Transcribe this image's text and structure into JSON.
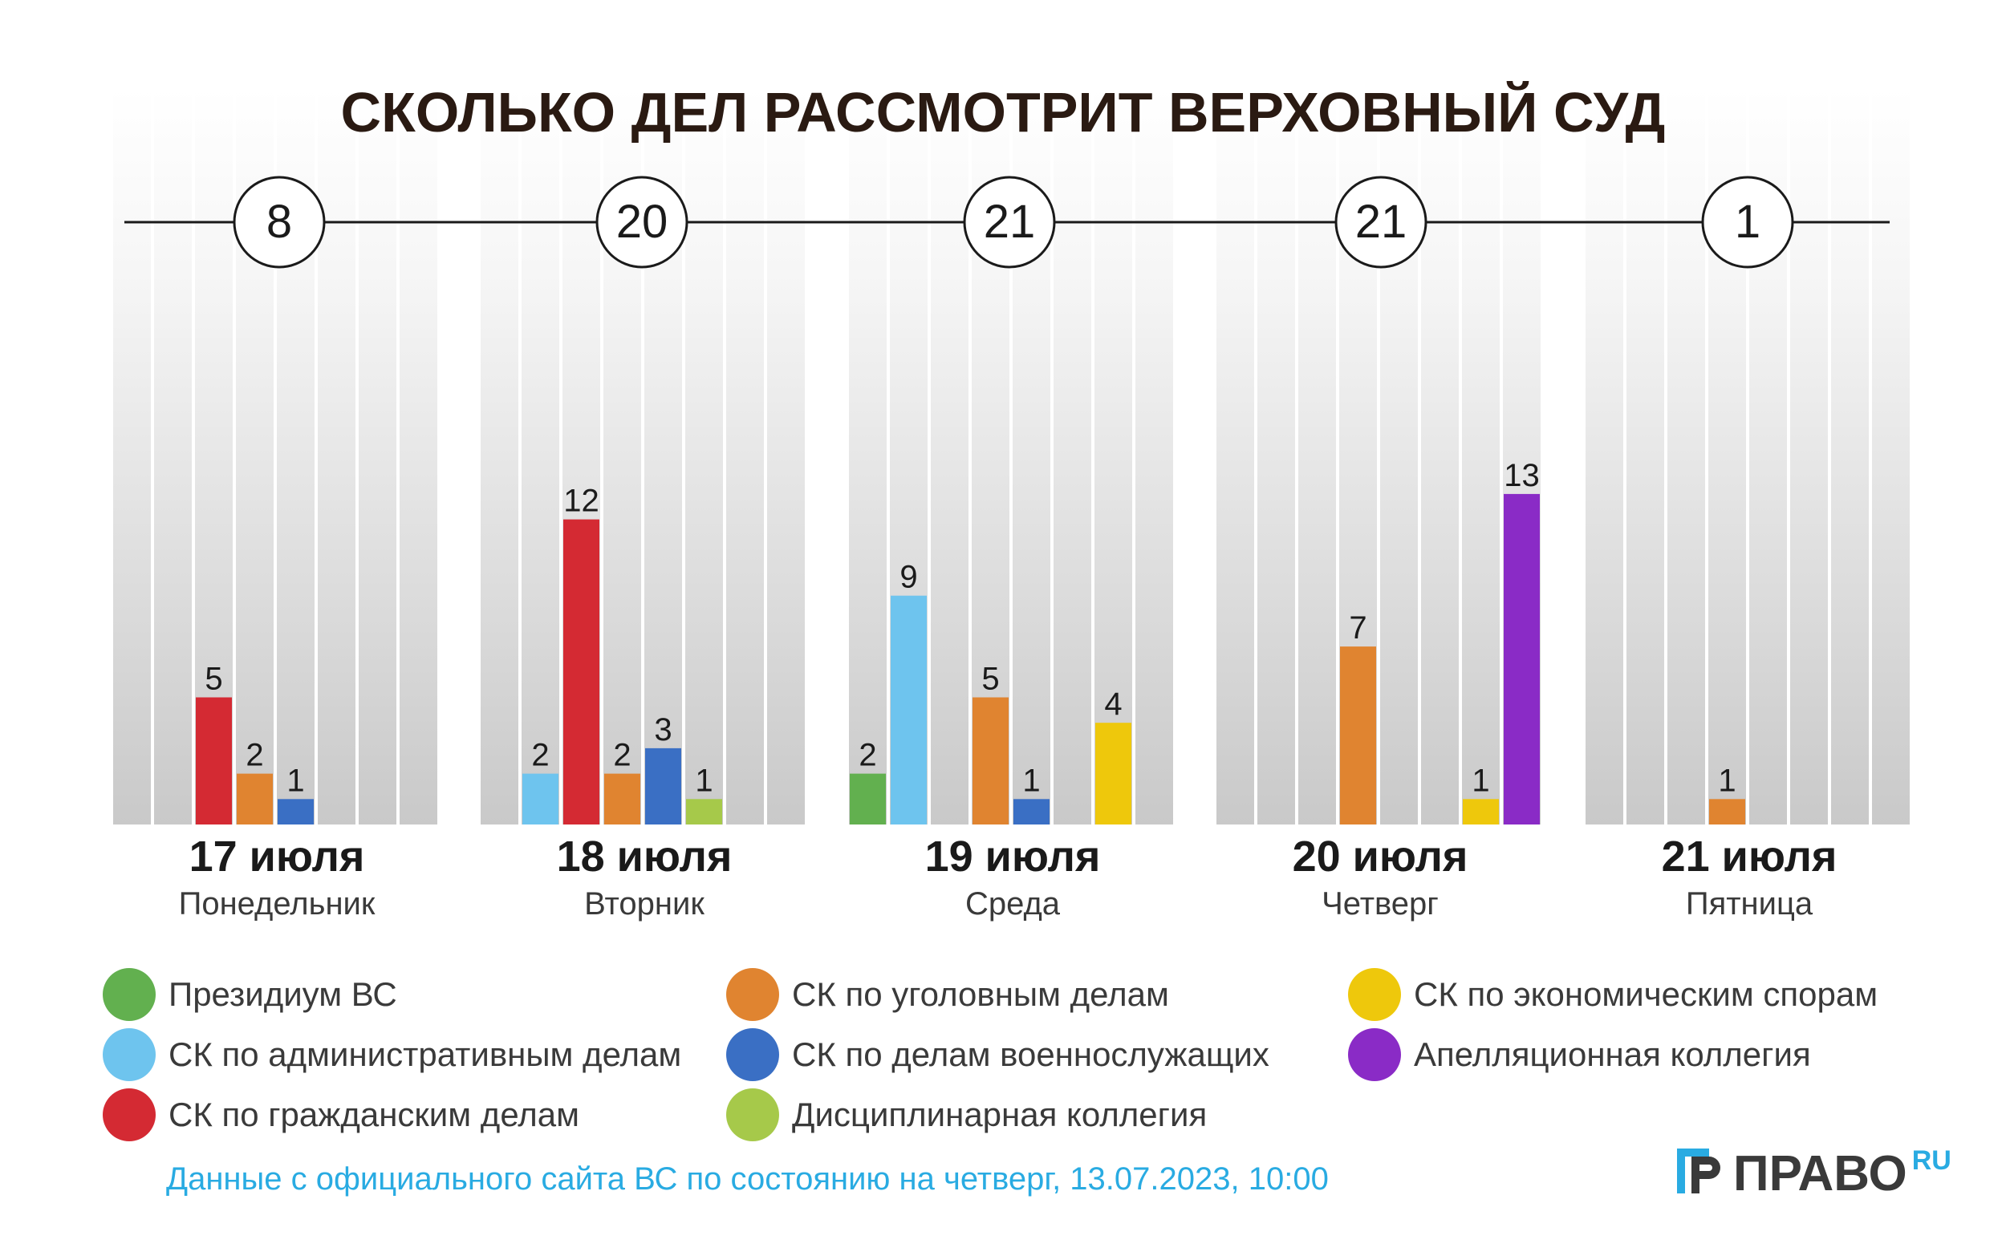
{
  "title": "СКОЛЬКО ДЕЛ РАССМОТРИТ ВЕРХОВНЫЙ СУД",
  "chart_data": {
    "type": "bar",
    "title": "СКОЛЬКО ДЕЛ РАССМОТРИТ ВЕРХОВНЫЙ СУД",
    "ylim": [
      0,
      13
    ],
    "categories": [
      {
        "date": "17 июля",
        "weekday": "Понедельник",
        "total": "8"
      },
      {
        "date": "18 июля",
        "weekday": "Вторник",
        "total": "20"
      },
      {
        "date": "19 июля",
        "weekday": "Среда",
        "total": "21"
      },
      {
        "date": "20 июля",
        "weekday": "Четверг",
        "total": "21"
      },
      {
        "date": "21 июля",
        "weekday": "Пятница",
        "total": "1"
      }
    ],
    "series": [
      {
        "name": "Президиум ВС",
        "color": "#62b04f",
        "values": [
          0,
          0,
          2,
          0,
          0
        ]
      },
      {
        "name": "СК по административным делам",
        "color": "#6ec4ee",
        "values": [
          0,
          2,
          9,
          0,
          0
        ]
      },
      {
        "name": "СК по гражданским делам",
        "color": "#d42a33",
        "values": [
          5,
          12,
          0,
          0,
          0
        ]
      },
      {
        "name": "СК по уголовным делам",
        "color": "#e08430",
        "values": [
          2,
          2,
          5,
          7,
          1
        ]
      },
      {
        "name": "СК по делам военнослужащих",
        "color": "#3a6fc4",
        "values": [
          1,
          3,
          1,
          0,
          0
        ]
      },
      {
        "name": "Дисциплинарная коллегия",
        "color": "#a6c94a",
        "values": [
          0,
          1,
          0,
          0,
          0
        ]
      },
      {
        "name": "СК по экономическим спорам",
        "color": "#eec80c",
        "values": [
          0,
          0,
          4,
          1,
          0
        ]
      },
      {
        "name": "Апелляционная коллегия",
        "color": "#8a2bc6",
        "values": [
          0,
          0,
          0,
          13,
          0
        ]
      }
    ]
  },
  "footnote": "Данные с официального сайта ВС по состоянию на четверг, 13.07.2023, 10:00",
  "logo": {
    "text": "ПРАВО",
    "suffix": "RU"
  }
}
